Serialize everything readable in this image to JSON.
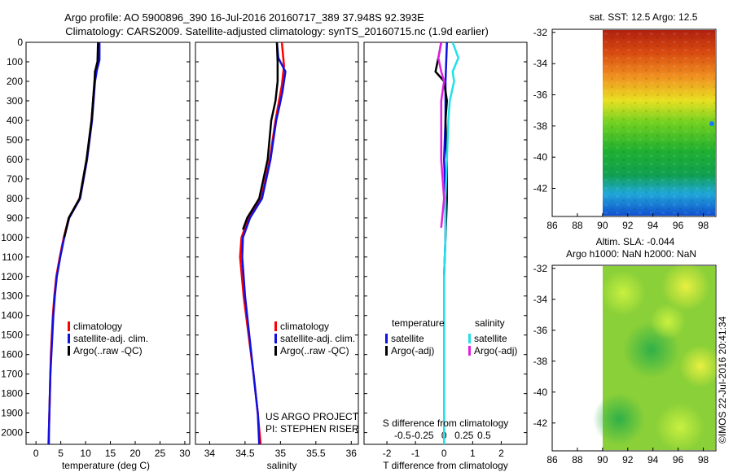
{
  "header": {
    "line1": "Argo profile: AO 5900896_390 16-Jul-2016 20160717_389 37.948S 92.393E",
    "line2": "Climatology: CARS2009. Satellite-adjusted climatology: synTS_20160715.nc (1.9d earlier)"
  },
  "colors": {
    "clim": "#ff0000",
    "sat": "#1010e0",
    "argo": "#000000",
    "sal_sat": "#22e0e8",
    "sal_argo": "#e020e0"
  },
  "chart_data": [
    {
      "type": "line",
      "title": "",
      "xlabel": "temperature (deg C)",
      "ylabel": "",
      "xlim": [
        -2,
        31
      ],
      "ylim": [
        2060,
        0
      ],
      "xticks": [
        0,
        5,
        10,
        15,
        20,
        25,
        30
      ],
      "yticks": [
        0,
        100,
        200,
        300,
        400,
        500,
        600,
        700,
        800,
        900,
        1000,
        1100,
        1200,
        1300,
        1400,
        1500,
        1600,
        1700,
        1800,
        1900,
        2000
      ],
      "legend": [
        "climatology",
        "satellite-adj. clim.",
        "Argo(..raw -QC)"
      ],
      "series": [
        {
          "name": "climatology",
          "color": "#ff0000",
          "points": [
            [
              12.6,
              0
            ],
            [
              12.6,
              80
            ],
            [
              12.2,
              120
            ],
            [
              11.8,
              200
            ],
            [
              11.2,
              400
            ],
            [
              10.2,
              600
            ],
            [
              8.8,
              800
            ],
            [
              6.6,
              900
            ],
            [
              5.6,
              1000
            ],
            [
              4.8,
              1100
            ],
            [
              4.1,
              1200
            ],
            [
              3.7,
              1300
            ],
            [
              3.4,
              1400
            ],
            [
              3.2,
              1500
            ],
            [
              3.0,
              1600
            ],
            [
              2.9,
              1700
            ],
            [
              2.8,
              1800
            ],
            [
              2.7,
              1900
            ],
            [
              2.6,
              2000
            ],
            [
              2.5,
              2060
            ]
          ]
        },
        {
          "name": "satellite-adj. clim.",
          "color": "#1010e0",
          "points": [
            [
              12.8,
              0
            ],
            [
              12.8,
              90
            ],
            [
              12.3,
              140
            ],
            [
              11.9,
              200
            ],
            [
              11.3,
              400
            ],
            [
              10.3,
              600
            ],
            [
              8.9,
              800
            ],
            [
              6.7,
              900
            ],
            [
              5.7,
              1000
            ],
            [
              4.9,
              1100
            ],
            [
              4.2,
              1200
            ],
            [
              3.8,
              1300
            ],
            [
              3.5,
              1400
            ],
            [
              3.3,
              1500
            ],
            [
              3.1,
              1600
            ],
            [
              2.9,
              1700
            ],
            [
              2.8,
              1800
            ],
            [
              2.7,
              1900
            ],
            [
              2.6,
              2000
            ],
            [
              2.6,
              2060
            ]
          ]
        },
        {
          "name": "Argo(..raw -QC)",
          "color": "#000000",
          "points": [
            [
              12.5,
              0
            ],
            [
              12.4,
              100
            ],
            [
              11.9,
              150
            ],
            [
              11.8,
              200
            ],
            [
              11.2,
              400
            ],
            [
              10.2,
              600
            ],
            [
              8.8,
              800
            ],
            [
              6.6,
              900
            ],
            [
              5.7,
              1000
            ]
          ]
        }
      ]
    },
    {
      "type": "line",
      "title": "",
      "xlabel": "salinity",
      "ylabel": "",
      "xlim": [
        33.8,
        36.1
      ],
      "ylim": [
        2060,
        0
      ],
      "xticks": [
        34,
        34.5,
        35,
        35.5,
        36
      ],
      "legend": [
        "climatology",
        "satellite-adj. clim.",
        "Argo(..raw -QC)"
      ],
      "footer": [
        "US ARGO PROJECT",
        "PI: STEPHEN RISER"
      ],
      "series": [
        {
          "name": "climatology",
          "color": "#ff0000",
          "points": [
            [
              35.02,
              0
            ],
            [
              35.05,
              120
            ],
            [
              35.02,
              220
            ],
            [
              34.98,
              300
            ],
            [
              34.93,
              400
            ],
            [
              34.85,
              600
            ],
            [
              34.73,
              800
            ],
            [
              34.55,
              900
            ],
            [
              34.45,
              1000
            ],
            [
              34.43,
              1100
            ],
            [
              34.48,
              1300
            ],
            [
              34.55,
              1500
            ],
            [
              34.62,
              1700
            ],
            [
              34.68,
              1900
            ],
            [
              34.72,
              2060
            ]
          ]
        },
        {
          "name": "satellite-adj. clim.",
          "color": "#1010e0",
          "points": [
            [
              34.95,
              0
            ],
            [
              34.97,
              80
            ],
            [
              35.07,
              150
            ],
            [
              35.03,
              250
            ],
            [
              34.99,
              320
            ],
            [
              34.94,
              400
            ],
            [
              34.86,
              600
            ],
            [
              34.74,
              800
            ],
            [
              34.57,
              900
            ],
            [
              34.47,
              1000
            ],
            [
              34.46,
              1100
            ],
            [
              34.5,
              1300
            ],
            [
              34.56,
              1500
            ],
            [
              34.62,
              1700
            ],
            [
              34.68,
              1900
            ],
            [
              34.7,
              2060
            ]
          ]
        },
        {
          "name": "Argo(..raw -QC)",
          "color": "#000000",
          "points": [
            [
              34.95,
              0
            ],
            [
              34.96,
              100
            ],
            [
              34.96,
              200
            ],
            [
              34.93,
              300
            ],
            [
              34.87,
              400
            ],
            [
              34.82,
              600
            ],
            [
              34.7,
              800
            ],
            [
              34.53,
              900
            ],
            [
              34.47,
              960
            ]
          ]
        }
      ]
    },
    {
      "type": "line",
      "title": "",
      "xlabel": "T difference from climatology",
      "xlabel2": "S difference from climatology",
      "xlim": [
        -2.8,
        2.9
      ],
      "ylim": [
        2060,
        0
      ],
      "xticks": [
        -2,
        -1,
        0,
        1,
        2
      ],
      "xticks2": [
        "-0.5",
        "-0.25",
        "0",
        "0.25",
        "0.5"
      ],
      "legend_headers": [
        "temperature",
        "salinity"
      ],
      "legend": [
        "satellite",
        "Argo(-adj)",
        "satellite",
        "Argo(-adj)"
      ],
      "series": [
        {
          "name": "T satellite",
          "color": "#1010e0",
          "points": [
            [
              0.1,
              0
            ],
            [
              0.05,
              200
            ],
            [
              0.05,
              400
            ],
            [
              0.0,
              600
            ],
            [
              0.05,
              800
            ],
            [
              0.05,
              1000
            ],
            [
              0.0,
              1200
            ],
            [
              0.0,
              1400
            ],
            [
              0.0,
              1600
            ],
            [
              0.0,
              1800
            ],
            [
              0.0,
              2060
            ]
          ]
        },
        {
          "name": "T Argo(-adj)",
          "color": "#000000",
          "points": [
            [
              -0.1,
              0
            ],
            [
              -0.2,
              80
            ],
            [
              -0.3,
              150
            ],
            [
              0.0,
              200
            ],
            [
              0.1,
              300
            ],
            [
              0.05,
              400
            ],
            [
              0.1,
              600
            ],
            [
              0.1,
              800
            ],
            [
              0.05,
              1000
            ]
          ]
        },
        {
          "name": "S satellite",
          "color": "#22e0e8",
          "points": [
            [
              0.3,
              0
            ],
            [
              0.5,
              80
            ],
            [
              0.3,
              150
            ],
            [
              0.35,
              200
            ],
            [
              0.2,
              300
            ],
            [
              0.15,
              400
            ],
            [
              0.1,
              600
            ],
            [
              0.05,
              800
            ],
            [
              0.05,
              1000
            ],
            [
              0.0,
              1200
            ],
            [
              0.0,
              1600
            ],
            [
              0.0,
              2060
            ]
          ]
        },
        {
          "name": "S Argo(-adj)",
          "color": "#e020e0",
          "points": [
            [
              -0.1,
              0
            ],
            [
              -0.2,
              80
            ],
            [
              -0.1,
              150
            ],
            [
              0.0,
              200
            ],
            [
              -0.1,
              300
            ],
            [
              -0.1,
              400
            ],
            [
              -0.1,
              600
            ],
            [
              0.0,
              800
            ],
            [
              -0.1,
              950
            ]
          ]
        }
      ]
    },
    {
      "type": "heatmap",
      "title": "sat. SST: 12.5  Argo: 12.5",
      "xticks": [
        86,
        88,
        90,
        92,
        94,
        96,
        98
      ],
      "yticks": [
        -32,
        -34,
        -36,
        -38,
        -40,
        -42
      ],
      "xlim": [
        86,
        99
      ],
      "ylim": [
        -43.8,
        -31.8
      ]
    },
    {
      "type": "heatmap",
      "title": "Altim. SLA: -0.044",
      "subtitle": "Argo h1000: NaN h2000: NaN",
      "xticks": [
        86,
        88,
        90,
        92,
        94,
        96,
        98
      ],
      "yticks": [
        -32,
        -34,
        -36,
        -38,
        -40,
        -42
      ],
      "xlim": [
        86,
        99
      ],
      "ylim": [
        -43.8,
        -31.8
      ]
    }
  ],
  "stamp": "©IMOS 22-Jul-2016 20:41:34"
}
